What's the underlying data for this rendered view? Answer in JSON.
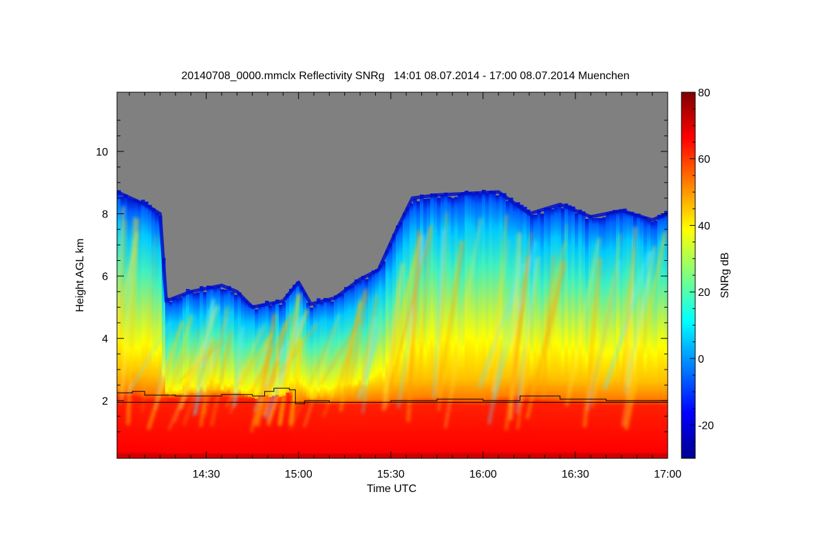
{
  "chart_data": {
    "type": "heatmap",
    "title": "20140708_0000.mmclx Reflectivity SNRg   14:01 08.07.2014 - 17:00 08.07.2014 Muenchen",
    "xlabel": "Time UTC",
    "ylabel": "Height AGL km",
    "x_range_minutes_utc": [
      841,
      1020
    ],
    "y_range_km": [
      0.15,
      11.9
    ],
    "x_ticks": [
      {
        "minute": 870,
        "label": "14:30"
      },
      {
        "minute": 900,
        "label": "15:00"
      },
      {
        "minute": 930,
        "label": "15:30"
      },
      {
        "minute": 960,
        "label": "16:00"
      },
      {
        "minute": 990,
        "label": "16:30"
      },
      {
        "minute": 1020,
        "label": "17:00"
      }
    ],
    "y_ticks": [
      {
        "value": 2,
        "label": "2"
      },
      {
        "value": 4,
        "label": "4"
      },
      {
        "value": 6,
        "label": "6"
      },
      {
        "value": 8,
        "label": "8"
      },
      {
        "value": 10,
        "label": "10"
      }
    ],
    "no_data_color": "#808080",
    "colorbar": {
      "label": "SNRg dB",
      "range": [
        -30,
        80
      ],
      "ticks": [
        {
          "value": -20,
          "label": "-20"
        },
        {
          "value": 0,
          "label": "0"
        },
        {
          "value": 20,
          "label": "20"
        },
        {
          "value": 40,
          "label": "40"
        },
        {
          "value": 60,
          "label": "60"
        },
        {
          "value": 80,
          "label": "80"
        }
      ],
      "colormap": [
        "#00008f",
        "#0000ff",
        "#0080ff",
        "#00ffff",
        "#80ff80",
        "#ffff00",
        "#ff8000",
        "#ff0000",
        "#800000"
      ]
    },
    "cloud_top_km": [
      {
        "t": 841,
        "h": 8.7
      },
      {
        "t": 850,
        "h": 8.3
      },
      {
        "t": 855,
        "h": 8.0
      },
      {
        "t": 857,
        "h": 5.2
      },
      {
        "t": 865,
        "h": 5.5
      },
      {
        "t": 875,
        "h": 5.7
      },
      {
        "t": 880,
        "h": 5.5
      },
      {
        "t": 885,
        "h": 5.0
      },
      {
        "t": 895,
        "h": 5.2
      },
      {
        "t": 900,
        "h": 5.8
      },
      {
        "t": 904,
        "h": 5.1
      },
      {
        "t": 912,
        "h": 5.3
      },
      {
        "t": 920,
        "h": 5.9
      },
      {
        "t": 926,
        "h": 6.2
      },
      {
        "t": 932,
        "h": 7.5
      },
      {
        "t": 937,
        "h": 8.5
      },
      {
        "t": 945,
        "h": 8.6
      },
      {
        "t": 965,
        "h": 8.7
      },
      {
        "t": 975,
        "h": 8.0
      },
      {
        "t": 985,
        "h": 8.3
      },
      {
        "t": 995,
        "h": 7.9
      },
      {
        "t": 1005,
        "h": 8.1
      },
      {
        "t": 1015,
        "h": 7.8
      },
      {
        "t": 1020,
        "h": 8.0
      }
    ],
    "boundary_layer_km": [
      {
        "t": 841,
        "h": 2.25
      },
      {
        "t": 846,
        "h": 2.3
      },
      {
        "t": 850,
        "h": 2.18
      },
      {
        "t": 860,
        "h": 2.15
      },
      {
        "t": 875,
        "h": 2.2
      },
      {
        "t": 885,
        "h": 2.15
      },
      {
        "t": 889,
        "h": 2.3
      },
      {
        "t": 892,
        "h": 2.4
      },
      {
        "t": 897,
        "h": 2.35
      },
      {
        "t": 899,
        "h": 1.9
      },
      {
        "t": 902,
        "h": 2.0
      },
      {
        "t": 910,
        "h": 1.95
      },
      {
        "t": 930,
        "h": 2.0
      },
      {
        "t": 945,
        "h": 2.05
      },
      {
        "t": 960,
        "h": 2.0
      },
      {
        "t": 972,
        "h": 2.15
      },
      {
        "t": 985,
        "h": 2.05
      },
      {
        "t": 1000,
        "h": 2.0
      },
      {
        "t": 1020,
        "h": 2.0
      }
    ],
    "reference_height_km": 1.95
  }
}
